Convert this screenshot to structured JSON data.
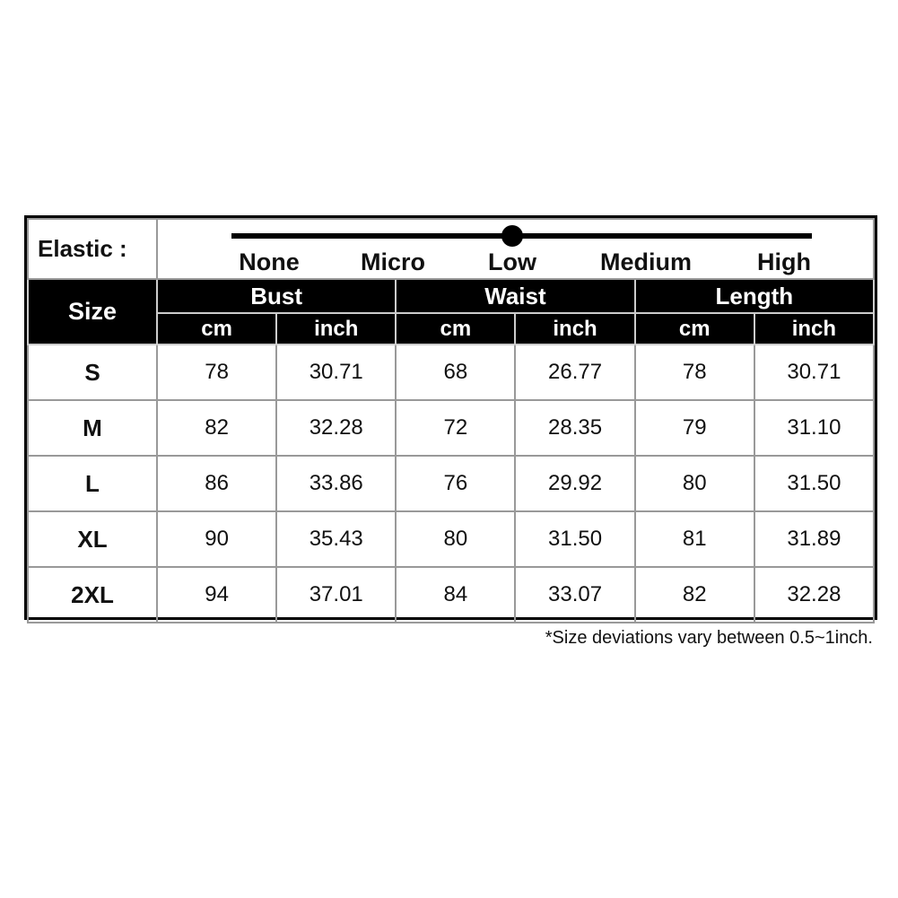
{
  "elastic": {
    "label": "Elastic :",
    "levels": [
      "None",
      "Micro",
      "Low",
      "Medium",
      "High"
    ],
    "selected_level": "Low",
    "selected_index": 2
  },
  "header": {
    "size": "Size",
    "groups": [
      "Bust",
      "Waist",
      "Length"
    ],
    "units": [
      "cm",
      "inch",
      "cm",
      "inch",
      "cm",
      "inch"
    ]
  },
  "rows": [
    {
      "size": "S",
      "values": [
        "78",
        "30.71",
        "68",
        "26.77",
        "78",
        "30.71"
      ]
    },
    {
      "size": "M",
      "values": [
        "82",
        "32.28",
        "72",
        "28.35",
        "79",
        "31.10"
      ]
    },
    {
      "size": "L",
      "values": [
        "86",
        "33.86",
        "76",
        "29.92",
        "80",
        "31.50"
      ]
    },
    {
      "size": "XL",
      "values": [
        "90",
        "35.43",
        "80",
        "31.50",
        "81",
        "31.89"
      ]
    },
    {
      "size": "2XL",
      "values": [
        "94",
        "37.01",
        "84",
        "33.07",
        "82",
        "32.28"
      ]
    }
  ],
  "note": "*Size deviations vary between 0.5~1inch."
}
